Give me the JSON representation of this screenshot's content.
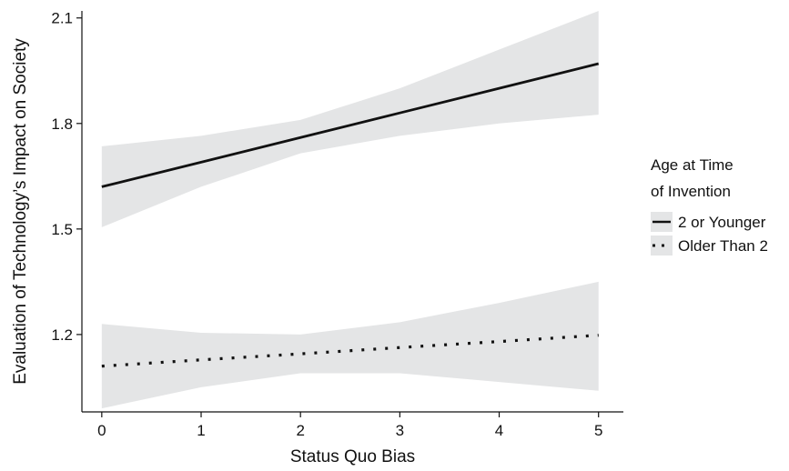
{
  "chart_data": {
    "type": "line",
    "xlabel": "Status Quo Bias",
    "ylabel": "Evaluation of Technology’s Impact on Society",
    "xlim": [
      -0.2,
      5.25
    ],
    "ylim": [
      0.98,
      2.12
    ],
    "x_ticks": [
      "0",
      "1",
      "2",
      "3",
      "4",
      "5"
    ],
    "y_ticks": [
      "1.2",
      "1.5",
      "1.8",
      "2.1"
    ],
    "legend_title_lines": [
      "Age at Time",
      "of Invention"
    ],
    "legend_placement": "right",
    "grid": false,
    "band_color": "#e4e5e6",
    "line_color": "#111111",
    "x": [
      0,
      1,
      2,
      3,
      4,
      5
    ],
    "series": [
      {
        "name": "2 or Younger",
        "line_style": "solid",
        "values": [
          1.62,
          1.69,
          1.76,
          1.83,
          1.9,
          1.97
        ],
        "ci_lower": [
          1.505,
          1.62,
          1.715,
          1.765,
          1.8,
          1.825
        ],
        "ci_upper": [
          1.735,
          1.765,
          1.81,
          1.9,
          2.01,
          2.12
        ]
      },
      {
        "name": "Older Than 2",
        "line_style": "dotted",
        "values": [
          1.11,
          1.128,
          1.145,
          1.163,
          1.18,
          1.198
        ],
        "ci_lower": [
          0.99,
          1.05,
          1.09,
          1.09,
          1.065,
          1.04
        ],
        "ci_upper": [
          1.23,
          1.205,
          1.2,
          1.235,
          1.29,
          1.35
        ]
      }
    ]
  }
}
